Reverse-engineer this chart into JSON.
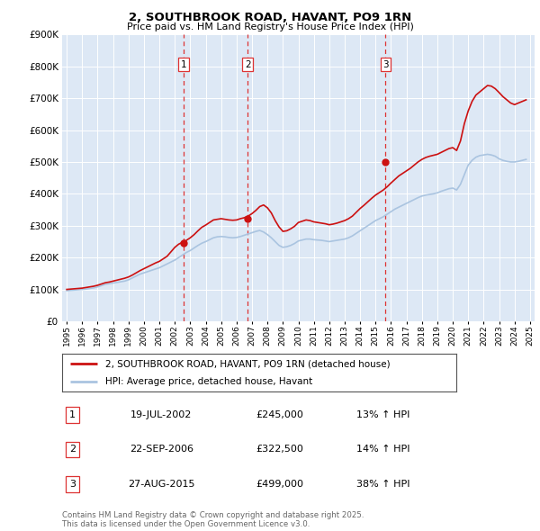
{
  "title": "2, SOUTHBROOK ROAD, HAVANT, PO9 1RN",
  "subtitle": "Price paid vs. HM Land Registry's House Price Index (HPI)",
  "background_color": "#ffffff",
  "plot_bg_color": "#dde8f5",
  "grid_color": "#ffffff",
  "ylim": [
    0,
    900000
  ],
  "yticks": [
    0,
    100000,
    200000,
    300000,
    400000,
    500000,
    600000,
    700000,
    800000,
    900000
  ],
  "xstart": 1995,
  "xend": 2025,
  "hpi_color": "#aac4e0",
  "price_color": "#cc1111",
  "vline_color": "#dd3333",
  "sale_dates_yr": [
    2002.55,
    2006.73,
    2015.65
  ],
  "sale_prices": [
    245000,
    322500,
    499000
  ],
  "sale_labels": [
    "1",
    "2",
    "3"
  ],
  "legend_label_price": "2, SOUTHBROOK ROAD, HAVANT, PO9 1RN (detached house)",
  "legend_label_hpi": "HPI: Average price, detached house, Havant",
  "table_entries": [
    {
      "num": "1",
      "date": "19-JUL-2002",
      "price": "£245,000",
      "change": "13% ↑ HPI"
    },
    {
      "num": "2",
      "date": "22-SEP-2006",
      "price": "£322,500",
      "change": "14% ↑ HPI"
    },
    {
      "num": "3",
      "date": "27-AUG-2015",
      "price": "£499,000",
      "change": "38% ↑ HPI"
    }
  ],
  "footer": "Contains HM Land Registry data © Crown copyright and database right 2025.\nThis data is licensed under the Open Government Licence v3.0.",
  "hpi_data_y": [
    96000,
    97000,
    98000,
    99000,
    100000,
    101000,
    103000,
    105000,
    108000,
    112000,
    116000,
    118000,
    120000,
    122000,
    124000,
    126000,
    130000,
    136000,
    142000,
    148000,
    152000,
    156000,
    160000,
    164000,
    168000,
    174000,
    180000,
    186000,
    192000,
    200000,
    208000,
    216000,
    222000,
    230000,
    238000,
    245000,
    250000,
    256000,
    262000,
    265000,
    266000,
    265000,
    263000,
    262000,
    263000,
    266000,
    270000,
    274000,
    278000,
    282000,
    285000,
    280000,
    272000,
    262000,
    250000,
    238000,
    232000,
    234000,
    238000,
    244000,
    252000,
    255000,
    258000,
    258000,
    256000,
    255000,
    254000,
    252000,
    250000,
    252000,
    254000,
    256000,
    258000,
    262000,
    268000,
    276000,
    284000,
    292000,
    300000,
    308000,
    316000,
    322000,
    328000,
    336000,
    344000,
    352000,
    358000,
    364000,
    370000,
    376000,
    382000,
    388000,
    393000,
    396000,
    398000,
    400000,
    403000,
    408000,
    412000,
    416000,
    418000,
    412000,
    430000,
    460000,
    490000,
    505000,
    515000,
    520000,
    522000,
    524000,
    522000,
    518000,
    510000,
    505000,
    502000,
    500000,
    500000,
    502000,
    505000,
    508000
  ],
  "price_data_y": [
    100000,
    101000,
    102000,
    103000,
    104000,
    106000,
    108000,
    110000,
    113000,
    117000,
    121000,
    123000,
    126000,
    129000,
    132000,
    135000,
    139000,
    145000,
    152000,
    159000,
    165000,
    171000,
    177000,
    183000,
    188000,
    196000,
    204000,
    218000,
    232000,
    242000,
    248000,
    254000,
    262000,
    272000,
    284000,
    295000,
    302000,
    310000,
    318000,
    320000,
    322000,
    320000,
    318000,
    317000,
    318000,
    322000,
    325000,
    330000,
    338000,
    348000,
    360000,
    365000,
    356000,
    340000,
    316000,
    296000,
    282000,
    284000,
    290000,
    298000,
    310000,
    314000,
    318000,
    316000,
    312000,
    310000,
    308000,
    306000,
    303000,
    305000,
    308000,
    312000,
    316000,
    322000,
    330000,
    342000,
    354000,
    364000,
    375000,
    386000,
    396000,
    404000,
    412000,
    422000,
    434000,
    445000,
    456000,
    464000,
    472000,
    480000,
    490000,
    500000,
    508000,
    514000,
    518000,
    521000,
    524000,
    530000,
    536000,
    542000,
    545000,
    536000,
    566000,
    620000,
    660000,
    690000,
    710000,
    720000,
    730000,
    740000,
    738000,
    730000,
    718000,
    705000,
    695000,
    685000,
    680000,
    685000,
    690000,
    695000
  ]
}
